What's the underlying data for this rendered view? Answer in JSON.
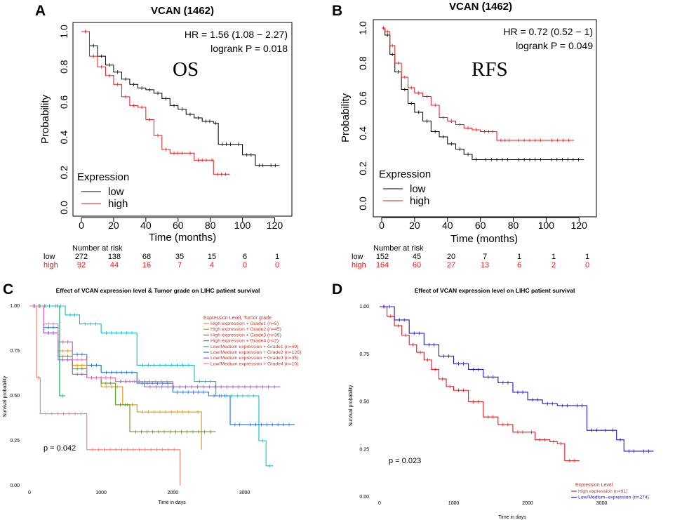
{
  "colors": {
    "black": "#000000",
    "red": "#e41a1c",
    "blue": "#1a1ad6"
  },
  "panels": {
    "A": {
      "letter": "A",
      "title": "VCAN (1462)",
      "hr_text": "HR = 1.56 (1.08 − 2.27)",
      "p_text": "logrank P = 0.018",
      "big_label": "OS",
      "xlabel": "Time (months)",
      "ylabel": "Probability",
      "xticks": [
        "0",
        "20",
        "40",
        "60",
        "80",
        "100",
        "120"
      ],
      "yticks": [
        "0.0",
        "0.2",
        "0.4",
        "0.6",
        "0.8",
        "1.0"
      ],
      "legend_title": "Expression",
      "legend_low": "low",
      "legend_high": "high",
      "risk_title": "Number at risk",
      "risk_low_label": "low",
      "risk_high_label": "high",
      "risk_low": [
        "272",
        "138",
        "68",
        "35",
        "15",
        "6",
        "1"
      ],
      "risk_high": [
        "92",
        "44",
        "16",
        "7",
        "4",
        "0",
        "0"
      ]
    },
    "B": {
      "letter": "B",
      "title": "VCAN (1462)",
      "hr_text": "HR = 0.72 (0.52 − 1)",
      "p_text": "logrank P = 0.049",
      "big_label": "RFS",
      "xlabel": "Time (months)",
      "ylabel": "Probability",
      "xticks": [
        "0",
        "20",
        "40",
        "60",
        "80",
        "100",
        "120"
      ],
      "yticks": [
        "0.0",
        "0.2",
        "0.4",
        "0.6",
        "0.8",
        "1.0"
      ],
      "legend_title": "Expression",
      "legend_low": "low",
      "legend_high": "high",
      "risk_title": "Number at risk",
      "risk_low_label": "low",
      "risk_high_label": "high",
      "risk_low": [
        "152",
        "45",
        "20",
        "7",
        "1",
        "1",
        "1"
      ],
      "risk_high": [
        "164",
        "60",
        "27",
        "13",
        "6",
        "2",
        "0"
      ]
    },
    "C": {
      "letter": "C",
      "title": "Effect of VCAN expression level & Tumor grade on LIHC patient survival",
      "xlabel": "Time in days",
      "ylabel": "Survival probability",
      "p_text": "p = 0.042",
      "xticks": [
        "0",
        "1000",
        "2000",
        "3000"
      ],
      "yticks": [
        "0.00",
        "0.25",
        "0.50",
        "0.75",
        "1.00"
      ],
      "legend_title": "Expression Level, Tumor grade",
      "legend": [
        "High expression + Grade1 (n=5)",
        "High expression + Grade2 (n=45)",
        "High expression + Grade3 (n=35)",
        "High expression + Grade4 (n=2)",
        "Low/Medium expression + Grade1 (n=49)",
        "Low/Medium expression + Grade2 (n=126)",
        "Low/Medium expression + Grade3 (n=35)",
        "Low/Medium expression + Grade4 (n=10)"
      ]
    },
    "D": {
      "letter": "D",
      "title": "Effect of VCAN expression level on LIHC patient survival",
      "xlabel": "Time in days",
      "ylabel": "Survival probability",
      "p_text": "p = 0.023",
      "xticks": [
        "0",
        "1000",
        "2000",
        "3000"
      ],
      "yticks": [
        "0.00",
        "0.25",
        "0.50",
        "0.75",
        "1.00"
      ],
      "legend_title": "Expression Level",
      "legend": [
        "High expression (n=91)",
        "Low/Medium−expression (n=274)"
      ]
    }
  },
  "chart_data": [
    {
      "type": "line",
      "id": "A",
      "title": "VCAN (1462)",
      "xlabel": "Time (months)",
      "ylabel": "Probability",
      "xlim": [
        0,
        125
      ],
      "ylim": [
        0,
        1
      ],
      "series": [
        {
          "name": "low",
          "color": "#000000",
          "x": [
            0,
            5,
            10,
            15,
            20,
            25,
            30,
            35,
            40,
            45,
            50,
            55,
            60,
            65,
            70,
            75,
            82,
            85,
            95,
            100,
            108,
            115,
            123
          ],
          "y": [
            1.0,
            0.92,
            0.86,
            0.81,
            0.77,
            0.73,
            0.7,
            0.68,
            0.67,
            0.65,
            0.62,
            0.58,
            0.56,
            0.53,
            0.51,
            0.49,
            0.48,
            0.36,
            0.36,
            0.3,
            0.24,
            0.24,
            0.24
          ]
        },
        {
          "name": "high",
          "color": "#e41a1c",
          "x": [
            0,
            5,
            10,
            15,
            20,
            25,
            30,
            35,
            40,
            45,
            50,
            55,
            65,
            70,
            80,
            82,
            92
          ],
          "y": [
            1.0,
            0.86,
            0.8,
            0.75,
            0.7,
            0.63,
            0.58,
            0.57,
            0.5,
            0.41,
            0.33,
            0.31,
            0.31,
            0.27,
            0.27,
            0.19,
            0.19
          ]
        }
      ]
    },
    {
      "type": "line",
      "id": "B",
      "title": "VCAN (1462)",
      "xlabel": "Time (months)",
      "ylabel": "Probability",
      "xlim": [
        0,
        125
      ],
      "ylim": [
        0,
        1
      ],
      "series": [
        {
          "name": "low",
          "color": "#000000",
          "x": [
            0,
            2,
            5,
            8,
            12,
            16,
            20,
            25,
            30,
            35,
            40,
            45,
            50,
            55,
            60,
            80,
            100,
            123
          ],
          "y": [
            1.0,
            0.96,
            0.85,
            0.75,
            0.65,
            0.57,
            0.52,
            0.47,
            0.41,
            0.38,
            0.34,
            0.31,
            0.28,
            0.25,
            0.25,
            0.25,
            0.25,
            0.25
          ]
        },
        {
          "name": "high",
          "color": "#e41a1c",
          "x": [
            0,
            2,
            5,
            8,
            12,
            16,
            20,
            25,
            30,
            35,
            40,
            45,
            50,
            55,
            60,
            70,
            80,
            100,
            117
          ],
          "y": [
            1.0,
            0.98,
            0.9,
            0.8,
            0.72,
            0.66,
            0.63,
            0.61,
            0.56,
            0.49,
            0.47,
            0.45,
            0.43,
            0.42,
            0.41,
            0.36,
            0.36,
            0.36,
            0.36
          ]
        }
      ]
    },
    {
      "type": "line",
      "id": "C",
      "title": "Effect of VCAN expression level & Tumor grade on LIHC patient survival",
      "xlabel": "Time in days",
      "ylabel": "Survival probability",
      "xlim": [
        0,
        3700
      ],
      "ylim": [
        0,
        1
      ],
      "series": [
        {
          "name": "High expression + Grade1 (n=5)",
          "color": "#f08070",
          "x": [
            0,
            100,
            150,
            800,
            2100
          ],
          "y": [
            1.0,
            0.6,
            0.4,
            0.2,
            0.0
          ]
        },
        {
          "name": "High expression + Grade2 (n=45)",
          "color": "#e0960c",
          "x": [
            0,
            200,
            400,
            600,
            800,
            1000,
            1300,
            1500,
            2300,
            2400
          ],
          "y": [
            1.0,
            0.85,
            0.75,
            0.67,
            0.6,
            0.55,
            0.45,
            0.41,
            0.41,
            0.2
          ]
        },
        {
          "name": "High expression + Grade3 (n=35)",
          "color": "#5a9a1a",
          "x": [
            0,
            200,
            400,
            600,
            800,
            1000,
            1200,
            1400,
            2600
          ],
          "y": [
            1.0,
            0.85,
            0.72,
            0.65,
            0.6,
            0.57,
            0.45,
            0.3,
            0.3
          ]
        },
        {
          "name": "High expression + Grade4 (n=2)",
          "color": "#00b050",
          "x": [
            0,
            350,
            420,
            500
          ],
          "y": [
            1.0,
            1.0,
            0.5,
            0.5
          ]
        },
        {
          "name": "Low/Medium expression + Grade1 (n=49)",
          "color": "#17becf",
          "x": [
            0,
            300,
            500,
            700,
            1000,
            1500,
            2300,
            2600,
            3200,
            3300,
            3400
          ],
          "y": [
            1.0,
            1.0,
            0.95,
            0.9,
            0.85,
            0.67,
            0.58,
            0.5,
            0.25,
            0.11,
            0.11
          ]
        },
        {
          "name": "Low/Medium expression + Grade2 (n=126)",
          "color": "#2171d8",
          "x": [
            0,
            200,
            400,
            600,
            800,
            1000,
            1500,
            2000,
            2500,
            2800,
            3000,
            3700
          ],
          "y": [
            1.0,
            0.88,
            0.8,
            0.73,
            0.67,
            0.63,
            0.57,
            0.52,
            0.5,
            0.34,
            0.34,
            0.34
          ]
        },
        {
          "name": "Low/Medium expression + Grade3 (n=35)",
          "color": "#9b59d0",
          "x": [
            0,
            200,
            400,
            600,
            800,
            1200,
            1600,
            3500
          ],
          "y": [
            1.0,
            0.85,
            0.7,
            0.62,
            0.6,
            0.58,
            0.55,
            0.55
          ]
        },
        {
          "name": "Low/Medium expression + Grade4 (n=10)",
          "color": "#e377c2",
          "x": [
            0,
            200,
            400,
            600,
            800,
            1200,
            2000
          ],
          "y": [
            1.0,
            0.9,
            0.8,
            0.7,
            0.6,
            0.58,
            0.55
          ]
        }
      ]
    },
    {
      "type": "line",
      "id": "D",
      "title": "Effect of VCAN expression level on LIHC patient survival",
      "xlabel": "Time in days",
      "ylabel": "Survival probability",
      "xlim": [
        0,
        3800
      ],
      "ylim": [
        0,
        1
      ],
      "series": [
        {
          "name": "High expression (n=91)",
          "color": "#e41a1c",
          "x": [
            0,
            100,
            200,
            300,
            400,
            500,
            600,
            700,
            800,
            900,
            1000,
            1200,
            1400,
            1600,
            1800,
            2000,
            2100,
            2300,
            2400,
            2500,
            2700
          ],
          "y": [
            1.0,
            0.95,
            0.9,
            0.85,
            0.8,
            0.76,
            0.72,
            0.67,
            0.62,
            0.58,
            0.56,
            0.5,
            0.42,
            0.38,
            0.34,
            0.34,
            0.3,
            0.29,
            0.28,
            0.19,
            0.19
          ]
        },
        {
          "name": "Low/Medium−expression (n=274)",
          "color": "#1a1ad6",
          "x": [
            0,
            200,
            400,
            600,
            800,
            1000,
            1200,
            1400,
            1600,
            1800,
            2000,
            2200,
            2400,
            2600,
            2800,
            3000,
            3100,
            3200,
            3300,
            3500,
            3700
          ],
          "y": [
            1.0,
            0.93,
            0.86,
            0.8,
            0.74,
            0.7,
            0.67,
            0.63,
            0.6,
            0.55,
            0.51,
            0.49,
            0.48,
            0.48,
            0.35,
            0.35,
            0.35,
            0.3,
            0.24,
            0.24,
            0.24
          ]
        }
      ]
    }
  ]
}
